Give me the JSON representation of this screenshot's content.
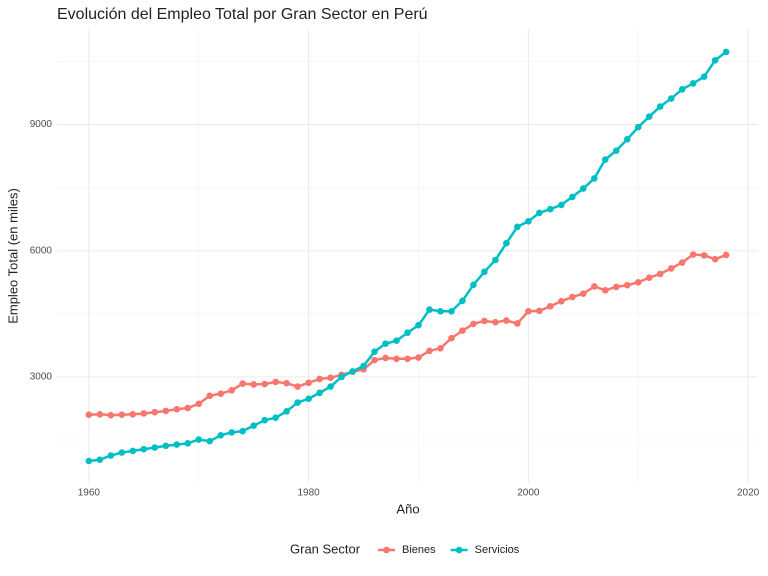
{
  "chart_data": {
    "type": "line",
    "title": "Evolución del Empleo Total por Gran Sector en Perú",
    "x_label": "Año",
    "y_label": "Empleo Total (en miles)",
    "legend_title": "Gran Sector",
    "legend_position": "bottom",
    "grid": true,
    "xlim": [
      1957.1,
      2020.9
    ],
    "ylim": [
      500,
      11250
    ],
    "xticks": [
      1960,
      1980,
      2000,
      2020
    ],
    "yticks": [
      3000,
      6000,
      9000
    ],
    "x_minor_ticks": [
      1970,
      1990,
      2010
    ],
    "y_minor_ticks": [
      1500,
      4500,
      7500,
      10500
    ],
    "x": [
      1960,
      1961,
      1962,
      1963,
      1964,
      1965,
      1966,
      1967,
      1968,
      1969,
      1970,
      1971,
      1972,
      1973,
      1974,
      1975,
      1976,
      1977,
      1978,
      1979,
      1980,
      1981,
      1982,
      1983,
      1984,
      1985,
      1986,
      1987,
      1988,
      1989,
      1990,
      1991,
      1992,
      1993,
      1994,
      1995,
      1996,
      1997,
      1998,
      1999,
      2000,
      2001,
      2002,
      2003,
      2004,
      2005,
      2006,
      2007,
      2008,
      2009,
      2010,
      2011,
      2012,
      2013,
      2014,
      2015,
      2016,
      2017,
      2018
    ],
    "series": [
      {
        "name": "Bienes",
        "color": "#F8766D",
        "values": [
          2100,
          2110,
          2090,
          2100,
          2110,
          2130,
          2160,
          2190,
          2230,
          2260,
          2360,
          2550,
          2600,
          2680,
          2840,
          2820,
          2830,
          2880,
          2850,
          2770,
          2860,
          2950,
          2980,
          3050,
          3120,
          3180,
          3400,
          3450,
          3430,
          3430,
          3460,
          3620,
          3680,
          3920,
          4100,
          4260,
          4330,
          4300,
          4340,
          4270,
          4560,
          4570,
          4680,
          4800,
          4900,
          4980,
          5150,
          5060,
          5140,
          5180,
          5250,
          5360,
          5450,
          5580,
          5720,
          5910,
          5890,
          5800,
          5900
        ]
      },
      {
        "name": "Servicios",
        "color": "#00BFC4",
        "values": [
          1000,
          1030,
          1130,
          1200,
          1240,
          1280,
          1320,
          1360,
          1390,
          1420,
          1510,
          1470,
          1610,
          1680,
          1710,
          1840,
          1970,
          2030,
          2180,
          2390,
          2480,
          2620,
          2770,
          3000,
          3130,
          3260,
          3600,
          3790,
          3860,
          4050,
          4230,
          4600,
          4560,
          4560,
          4810,
          5190,
          5500,
          5780,
          6180,
          6570,
          6700,
          6900,
          6990,
          7090,
          7280,
          7480,
          7720,
          8170,
          8380,
          8650,
          8940,
          9190,
          9430,
          9620,
          9840,
          9980,
          10140,
          10530,
          10730
        ]
      }
    ]
  }
}
